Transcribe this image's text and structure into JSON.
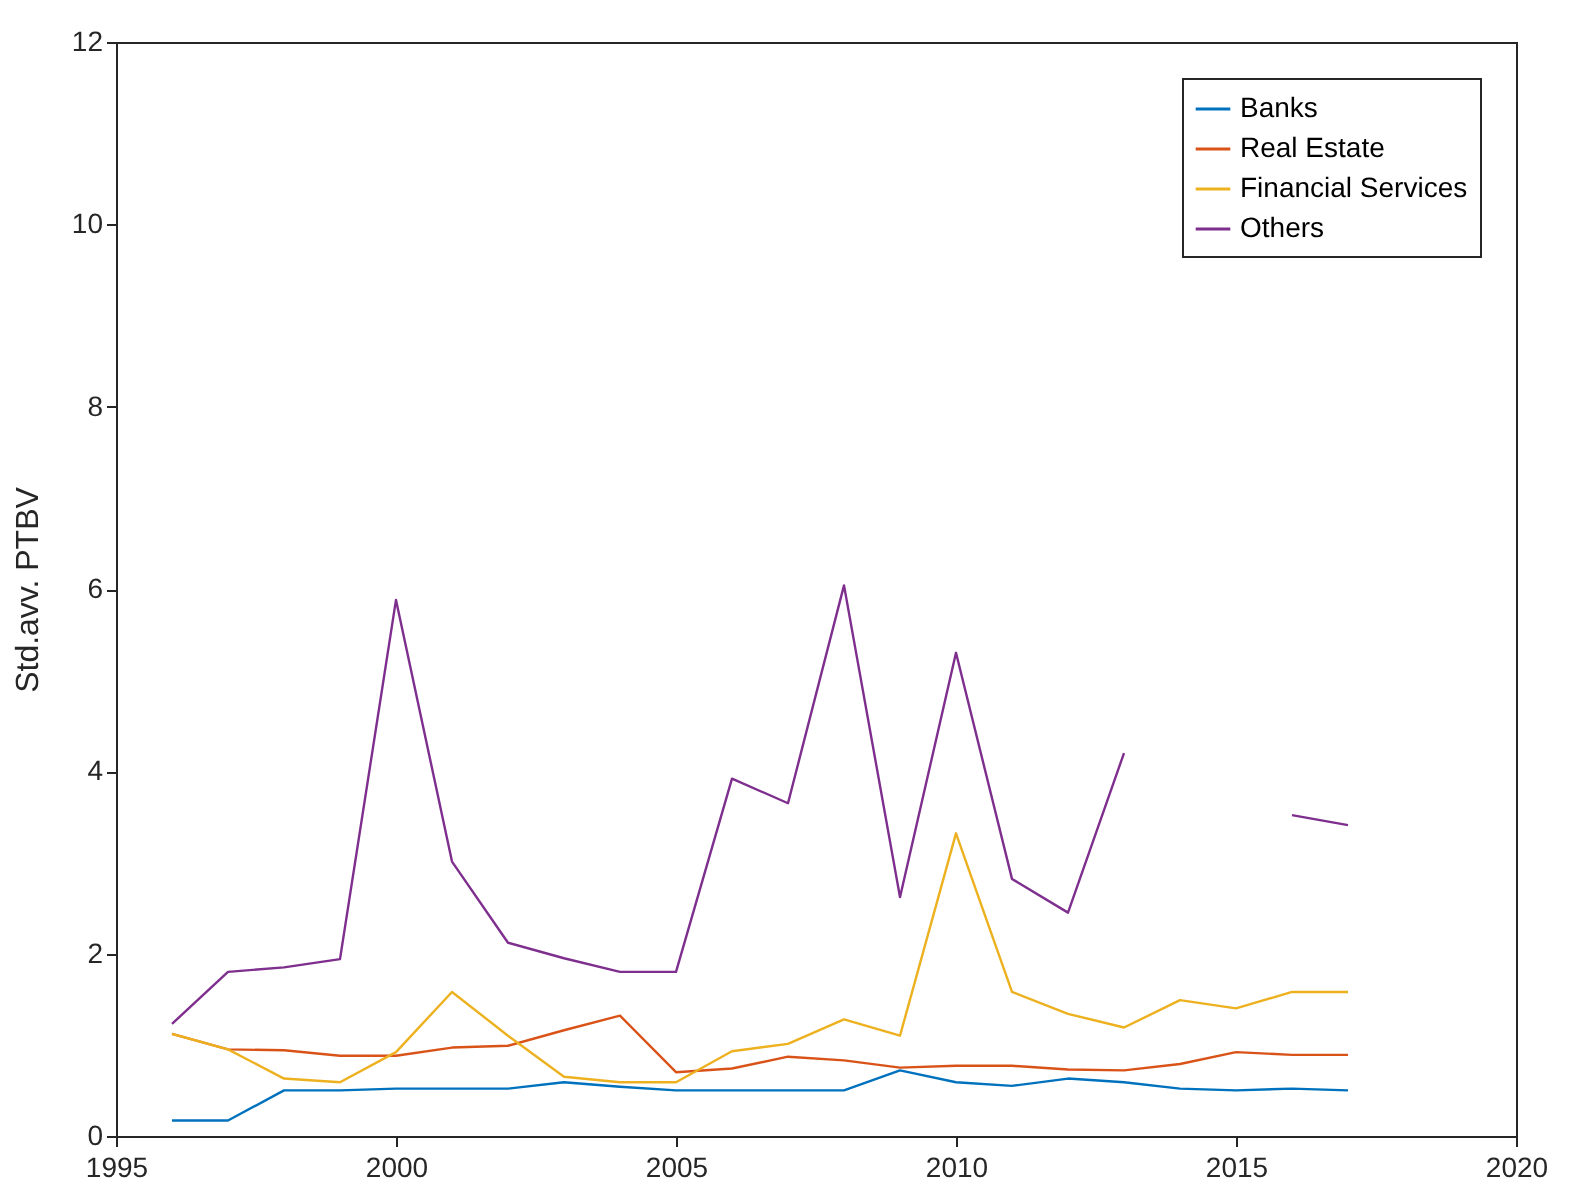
{
  "chart_data": {
    "type": "line",
    "ylabel": "Std.avv. PTBV",
    "x": [
      1996,
      1997,
      1998,
      1999,
      2000,
      2001,
      2002,
      2003,
      2004,
      2005,
      2006,
      2007,
      2008,
      2009,
      2010,
      2011,
      2012,
      2013,
      2014,
      2015,
      2016,
      2017
    ],
    "xlim": [
      1995,
      2020
    ],
    "xticks": [
      1995,
      2000,
      2005,
      2010,
      2015,
      2020
    ],
    "ylim": [
      0,
      12
    ],
    "yticks": [
      0,
      2,
      4,
      6,
      8,
      10,
      12
    ],
    "grid": false,
    "legend": "top right",
    "marker": "none",
    "line_style": "solid",
    "series": [
      {
        "name": "Banks",
        "color": "#0072bd",
        "values": [
          0.17,
          0.17,
          0.5,
          0.5,
          0.52,
          0.52,
          0.52,
          0.59,
          0.54,
          0.5,
          0.5,
          0.5,
          0.5,
          0.72,
          0.59,
          0.55,
          0.63,
          0.59,
          0.52,
          0.5,
          0.52,
          0.5
        ]
      },
      {
        "name": "Real Estate",
        "color": "#d95319",
        "values": [
          1.12,
          0.95,
          0.94,
          0.88,
          0.88,
          0.97,
          0.99,
          1.16,
          1.32,
          0.7,
          0.74,
          0.87,
          0.83,
          0.75,
          0.77,
          0.77,
          0.73,
          0.72,
          0.79,
          0.92,
          0.89,
          0.89
        ]
      },
      {
        "name": "Financial Services",
        "color": "#edb120",
        "values": [
          1.12,
          0.95,
          0.63,
          0.59,
          0.92,
          1.58,
          1.1,
          0.65,
          0.59,
          0.59,
          0.93,
          1.01,
          1.28,
          1.1,
          3.32,
          1.58,
          1.34,
          1.19,
          1.49,
          1.4,
          1.58,
          1.58
        ]
      },
      {
        "name": "Others",
        "color": "#7e2f8e",
        "values": [
          1.23,
          1.8,
          1.85,
          1.94,
          5.88,
          3.01,
          2.12,
          1.95,
          1.8,
          1.8,
          3.92,
          3.65,
          6.04,
          2.62,
          5.3,
          2.82,
          2.45,
          4.2,
          null,
          null,
          3.52,
          3.41
        ]
      }
    ]
  }
}
